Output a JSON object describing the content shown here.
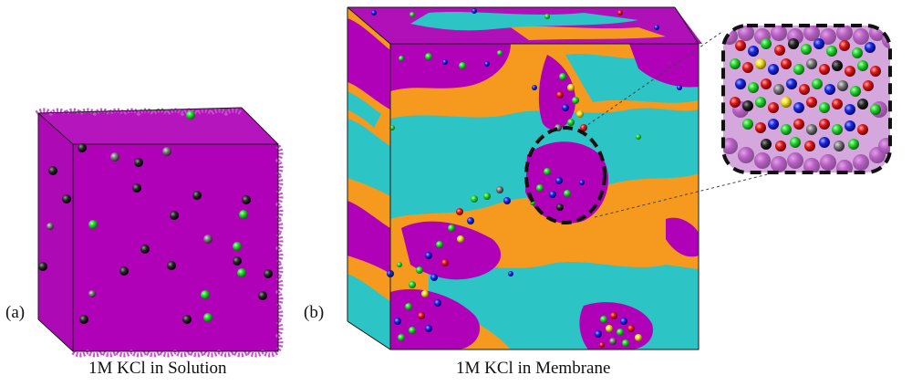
{
  "panels": [
    {
      "label": "(a)",
      "caption": "1M KCl in Solution",
      "view": "solution-box"
    },
    {
      "label": "(b)",
      "caption": "1M KCl in Membrane",
      "view": "membrane-box",
      "inset": "zoomed-ion-cluster"
    }
  ],
  "colors": {
    "water": "#b000b8",
    "water_light": "#c84fd0",
    "membrane_orange": "#f59a1e",
    "membrane_cyan": "#2cc4c4",
    "ion_green": "#22d62c",
    "ion_blue": "#1a28e0",
    "ion_black": "#151515",
    "ion_red": "#e01818",
    "ion_yellow": "#f0e020",
    "ion_gray": "#7a7a7a"
  }
}
